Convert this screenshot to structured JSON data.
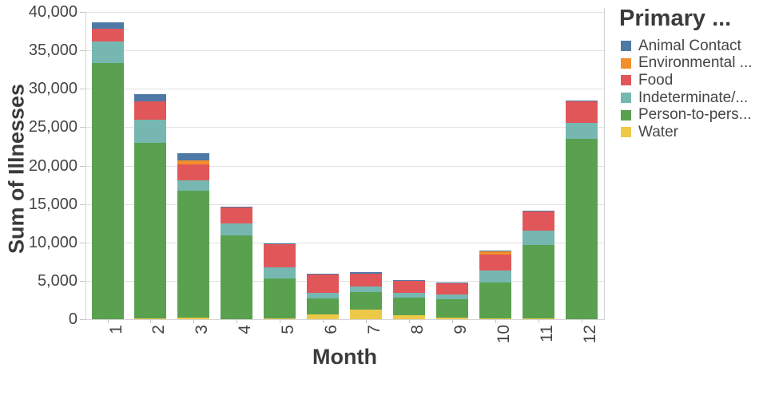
{
  "y_axis": {
    "title": "Sum of Illnesses",
    "tick_labels": [
      "0",
      "5,000",
      "10,000",
      "15,000",
      "20,000",
      "25,000",
      "30,000",
      "35,000",
      "40,000"
    ]
  },
  "x_axis": {
    "title": "Month"
  },
  "legend": {
    "title": "Primary ...",
    "items": [
      {
        "label": "Animal Contact",
        "color": "#4e79a7"
      },
      {
        "label": "Environmental ...",
        "color": "#f28e2b"
      },
      {
        "label": "Food",
        "color": "#e15759"
      },
      {
        "label": "Indeterminate/...",
        "color": "#76b7b2"
      },
      {
        "label": "Person-to-pers...",
        "color": "#59a14f"
      },
      {
        "label": "Water",
        "color": "#edc948"
      }
    ]
  },
  "chart_data": {
    "type": "bar",
    "stacked": true,
    "stack_order": "bottom-to-top",
    "title": "",
    "xlabel": "Month",
    "ylabel": "Sum of Illnesses",
    "ylim": [
      0,
      40000
    ],
    "y_tick_interval": 5000,
    "grid": true,
    "legend_position": "right",
    "categories": [
      "1",
      "2",
      "3",
      "4",
      "5",
      "6",
      "7",
      "8",
      "9",
      "10",
      "11",
      "12"
    ],
    "series": [
      {
        "name": "Water",
        "color": "#edc948",
        "values": [
          0,
          100,
          200,
          0,
          150,
          580,
          1250,
          520,
          170,
          150,
          100,
          0
        ]
      },
      {
        "name": "Person-to-pers...",
        "color": "#59a14f",
        "values": [
          33400,
          22900,
          16500,
          10900,
          5200,
          2080,
          2320,
          2320,
          2400,
          4600,
          9600,
          23500
        ]
      },
      {
        "name": "Indeterminate/...",
        "color": "#76b7b2",
        "values": [
          2800,
          3000,
          1400,
          1600,
          1400,
          800,
          700,
          560,
          620,
          1630,
          1800,
          2100
        ]
      },
      {
        "name": "Food",
        "color": "#e15759",
        "values": [
          1600,
          2400,
          2100,
          2050,
          3000,
          2330,
          1660,
          1560,
          1500,
          2000,
          2500,
          2800
        ]
      },
      {
        "name": "Environmental ...",
        "color": "#f28e2b",
        "values": [
          0,
          0,
          500,
          0,
          0,
          0,
          0,
          0,
          0,
          420,
          0,
          0
        ]
      },
      {
        "name": "Animal Contact",
        "color": "#4e79a7",
        "values": [
          900,
          900,
          900,
          150,
          150,
          100,
          150,
          100,
          100,
          100,
          100,
          100
        ]
      }
    ],
    "totals": [
      38700,
      29300,
      21600,
      14700,
      9900,
      5890,
      6080,
      5060,
      4790,
      8900,
      14100,
      28500
    ]
  }
}
